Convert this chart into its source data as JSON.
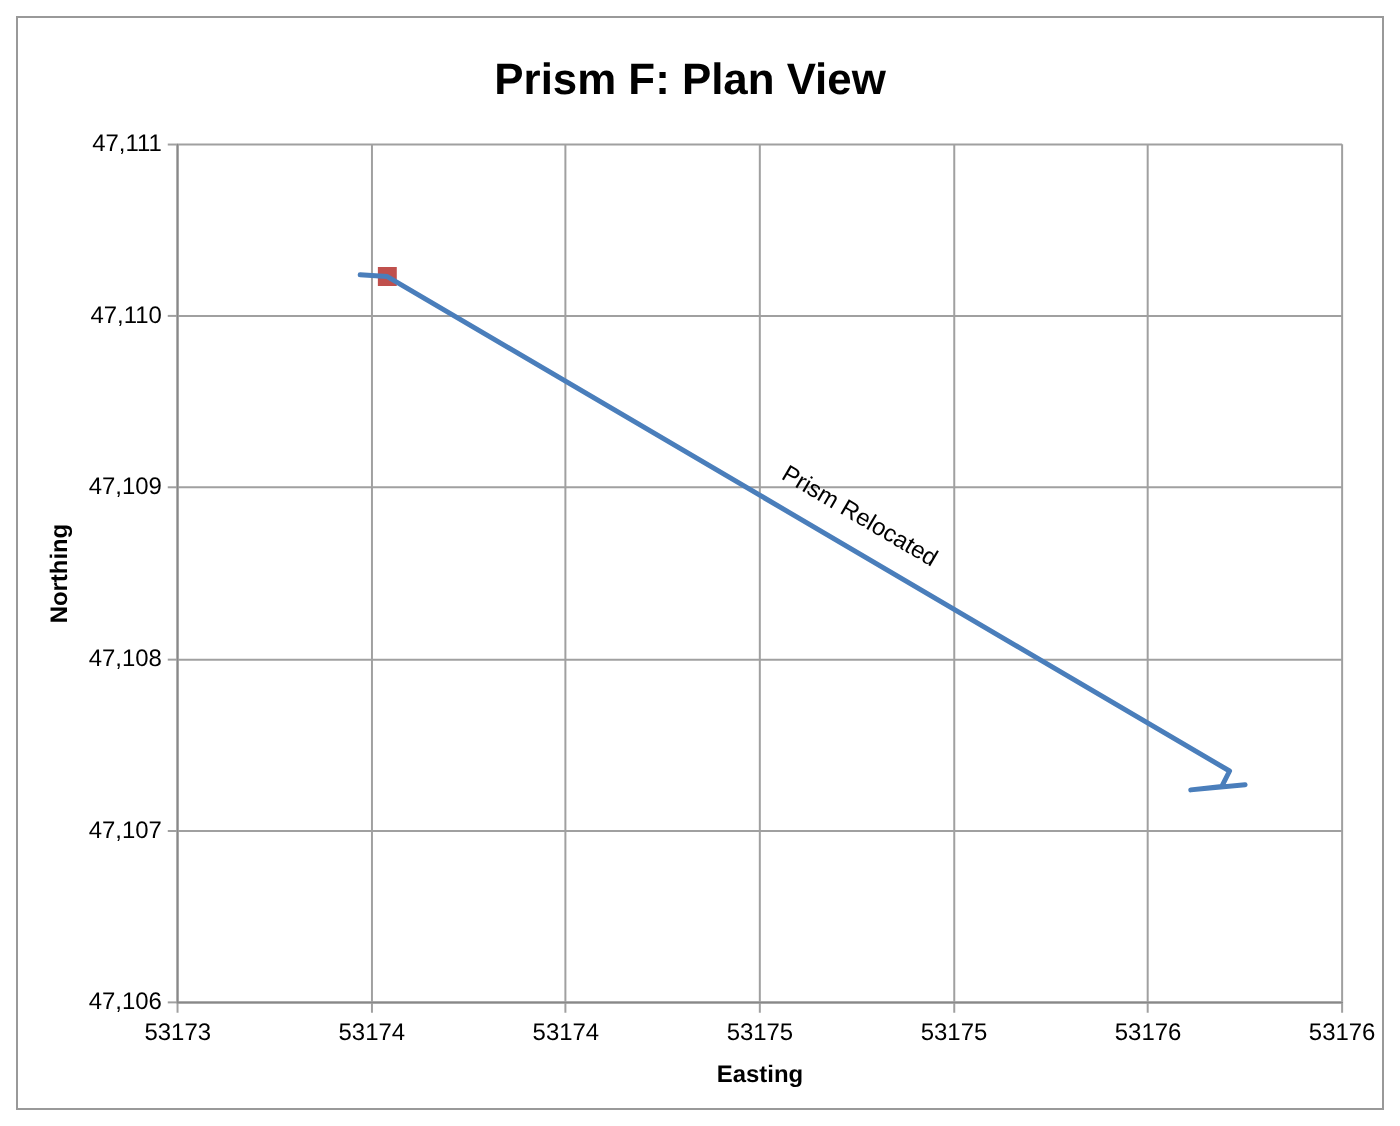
{
  "chart_data": {
    "type": "scatter",
    "title": "Prism F: Plan View",
    "xlabel": "Easting",
    "ylabel": "Northing",
    "xlim": [
      53173,
      53176
    ],
    "ylim": [
      47106,
      47111
    ],
    "xticks": [
      {
        "value": 53173,
        "label": "53173"
      },
      {
        "value": 53173.5,
        "label": "53174"
      },
      {
        "value": 53174,
        "label": "53174"
      },
      {
        "value": 53174.5,
        "label": "53175"
      },
      {
        "value": 53175,
        "label": "53175"
      },
      {
        "value": 53175.5,
        "label": "53176"
      },
      {
        "value": 53176,
        "label": "53176"
      }
    ],
    "yticks": [
      {
        "value": 47106,
        "label": "47,106"
      },
      {
        "value": 47107,
        "label": "47,107"
      },
      {
        "value": 47108,
        "label": "47,108"
      },
      {
        "value": 47109,
        "label": "47,109"
      },
      {
        "value": 47110,
        "label": "47,110"
      },
      {
        "value": 47111,
        "label": "47,111"
      }
    ],
    "grid": true,
    "legend": false,
    "series": [
      {
        "type": "line",
        "marker": "none",
        "color": "#4a7ebb",
        "x": [
          53173.47,
          53173.54,
          53175.71,
          53175.69,
          53175.61,
          53175.75
        ],
        "values": [
          47110.24,
          47110.23,
          47107.35,
          47107.26,
          47107.24,
          47107.27
        ]
      },
      {
        "type": "scatter",
        "marker": "square",
        "color": "#c0504d",
        "x": [
          53173.54
        ],
        "values": [
          47110.23
        ]
      }
    ],
    "annotations": [
      {
        "text": "Prism Relocated",
        "x": 53174.73,
        "y": 47108.73
      }
    ]
  }
}
